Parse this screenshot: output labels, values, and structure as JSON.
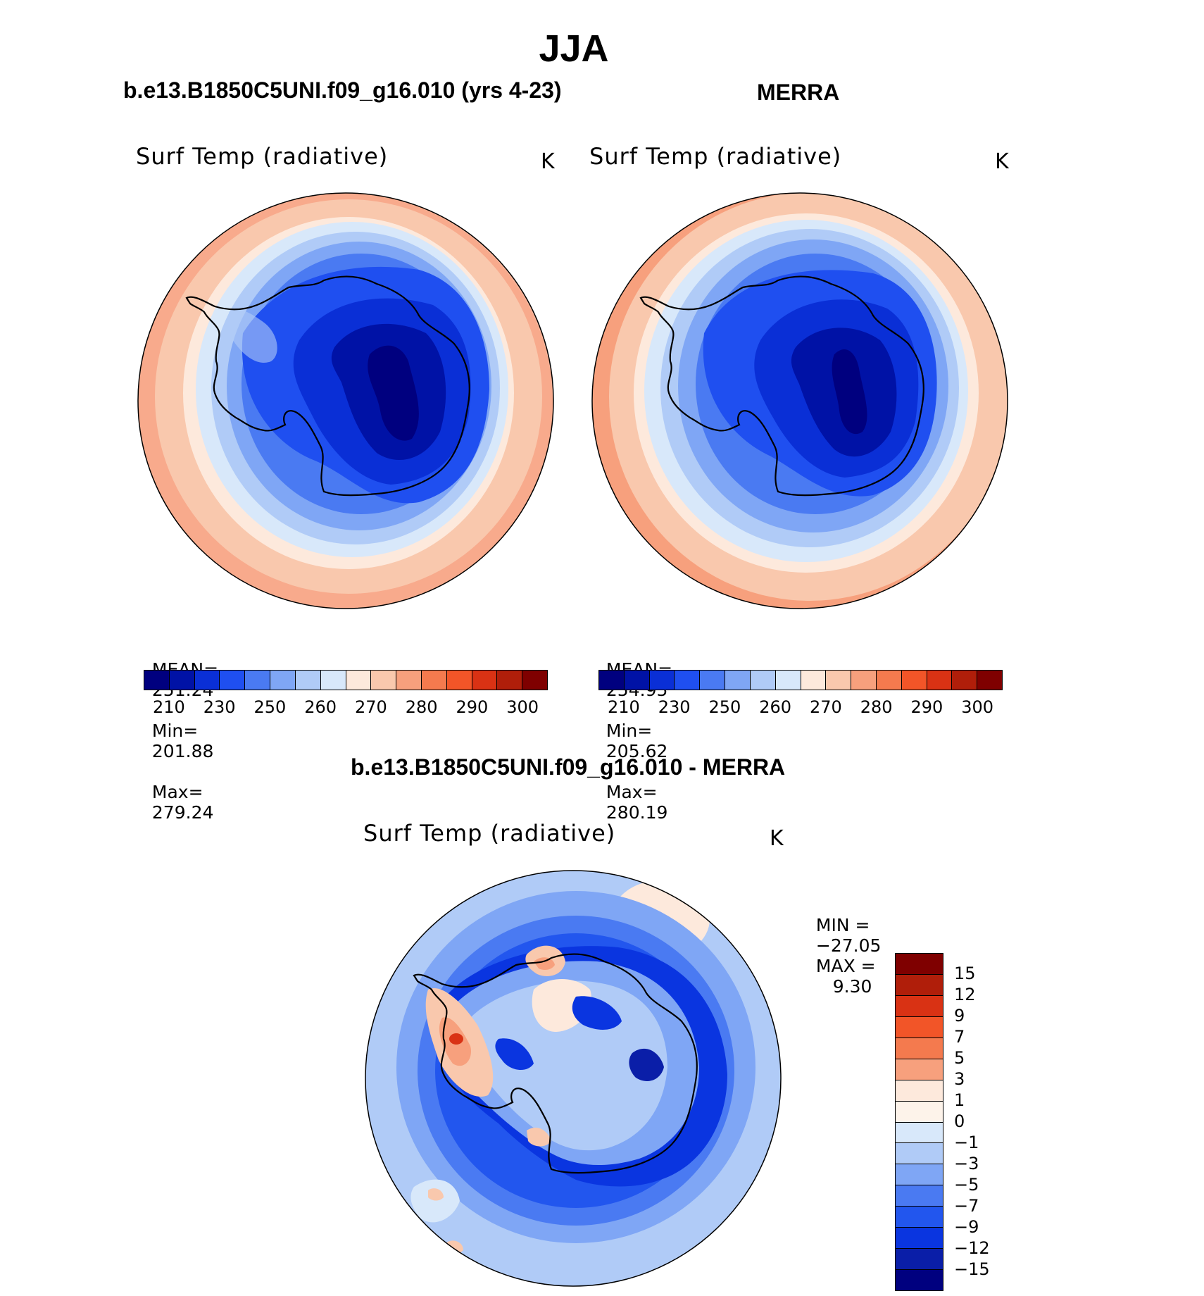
{
  "page": {
    "title": "JJA"
  },
  "panels": [
    {
      "header": "b.e13.B1850C5UNI.f09_g16.010 (yrs 4-23)",
      "variable": "Surf Temp (radiative)",
      "units": "K",
      "stats": {
        "mean_label": "MEAN=",
        "mean": "251.24",
        "min_label": "Min=",
        "min": "201.88",
        "max_label": "Max=",
        "max": "279.24"
      }
    },
    {
      "header": "MERRA",
      "variable": "Surf Temp (radiative)",
      "units": "K",
      "stats": {
        "mean_label": "MEAN=",
        "mean": "254.95",
        "min_label": "Min=",
        "min": "205.62",
        "max_label": "Max=",
        "max": "280.19"
      }
    }
  ],
  "abs_colorbar": {
    "colors": [
      "#00007f",
      "#0012a6",
      "#0a2fd6",
      "#1f4ff0",
      "#4a7af2",
      "#7fa6f5",
      "#b0cbf7",
      "#d8e8fa",
      "#fde9dc",
      "#f9c8ad",
      "#f7a07d",
      "#f47a4e",
      "#f25528",
      "#d93214",
      "#b01e0a",
      "#7f0000"
    ],
    "labels": [
      "210",
      "230",
      "250",
      "260",
      "270",
      "280",
      "290",
      "300"
    ]
  },
  "diff_panel": {
    "header": "b.e13.B1850C5UNI.f09_g16.010 - MERRA",
    "variable": "Surf Temp (radiative)",
    "units": "K",
    "minmax": {
      "min_label": "MIN =",
      "min": "−27.05",
      "max_label": "MAX =",
      "max": "9.30"
    }
  },
  "diff_colorbar": {
    "colors": [
      "#7f0000",
      "#b01e0a",
      "#d93214",
      "#f25528",
      "#f47a4e",
      "#f7a07d",
      "#fde9dc",
      "#fdf3ea",
      "#d8e8fa",
      "#b0cbf7",
      "#7fa6f5",
      "#4a7af2",
      "#2256ee",
      "#0a35e0",
      "#0a1ea8",
      "#00007f"
    ],
    "labels": [
      "15",
      "12",
      "9",
      "7",
      "5",
      "3",
      "1",
      "0",
      "−1",
      "−3",
      "−5",
      "−7",
      "−9",
      "−12",
      "−15"
    ]
  }
}
